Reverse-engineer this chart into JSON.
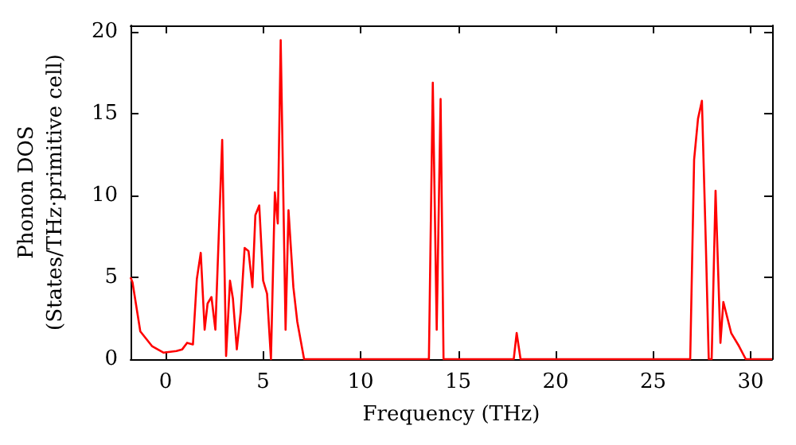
{
  "chart_data": {
    "type": "line",
    "xlabel": "Frequency (THz)",
    "ylabel": "Phonon DOS\n(States/THz·primitive cell)",
    "xlim": [
      -1.8,
      31.1
    ],
    "xticks": [
      0,
      5,
      10,
      15,
      20,
      25,
      30
    ],
    "ylim": [
      0,
      20.4
    ],
    "yticks": [
      0,
      5,
      10,
      15,
      20
    ],
    "grid": false,
    "marker": "none",
    "line_style": "solid",
    "series": [
      {
        "color": "#ff0000",
        "x": [
          -1.8,
          -1.7,
          -1.3,
          -0.7,
          -0.1,
          0.55,
          0.85,
          1.1,
          1.4,
          1.6,
          1.8,
          2.0,
          2.15,
          2.35,
          2.55,
          2.9,
          3.1,
          3.3,
          3.45,
          3.65,
          3.85,
          4.05,
          4.25,
          4.45,
          4.6,
          4.8,
          5.0,
          5.2,
          5.4,
          5.6,
          5.75,
          5.9,
          6.15,
          6.3,
          6.55,
          6.75,
          7.1,
          13.5,
          13.7,
          13.9,
          14.1,
          14.25,
          17.85,
          18.0,
          18.2,
          26.9,
          27.1,
          27.3,
          27.5,
          27.7,
          27.85,
          28.0,
          28.2,
          28.45,
          28.6,
          29.0,
          29.4,
          29.75,
          31.1
        ],
        "values": [
          5.0,
          4.7,
          1.7,
          0.8,
          0.4,
          0.5,
          0.6,
          1.0,
          0.9,
          4.9,
          6.5,
          1.8,
          3.4,
          3.8,
          1.8,
          13.4,
          0.2,
          4.8,
          3.7,
          0.6,
          2.9,
          6.8,
          6.6,
          4.4,
          8.8,
          9.4,
          4.8,
          4.0,
          0,
          10.2,
          8.3,
          19.5,
          1.8,
          9.1,
          4.4,
          2.3,
          0,
          0,
          16.9,
          1.8,
          15.9,
          0,
          0,
          1.6,
          0,
          0,
          12.2,
          14.7,
          15.8,
          7.1,
          0,
          0,
          10.3,
          1.0,
          3.5,
          1.6,
          0.8,
          0,
          0
        ]
      }
    ]
  }
}
